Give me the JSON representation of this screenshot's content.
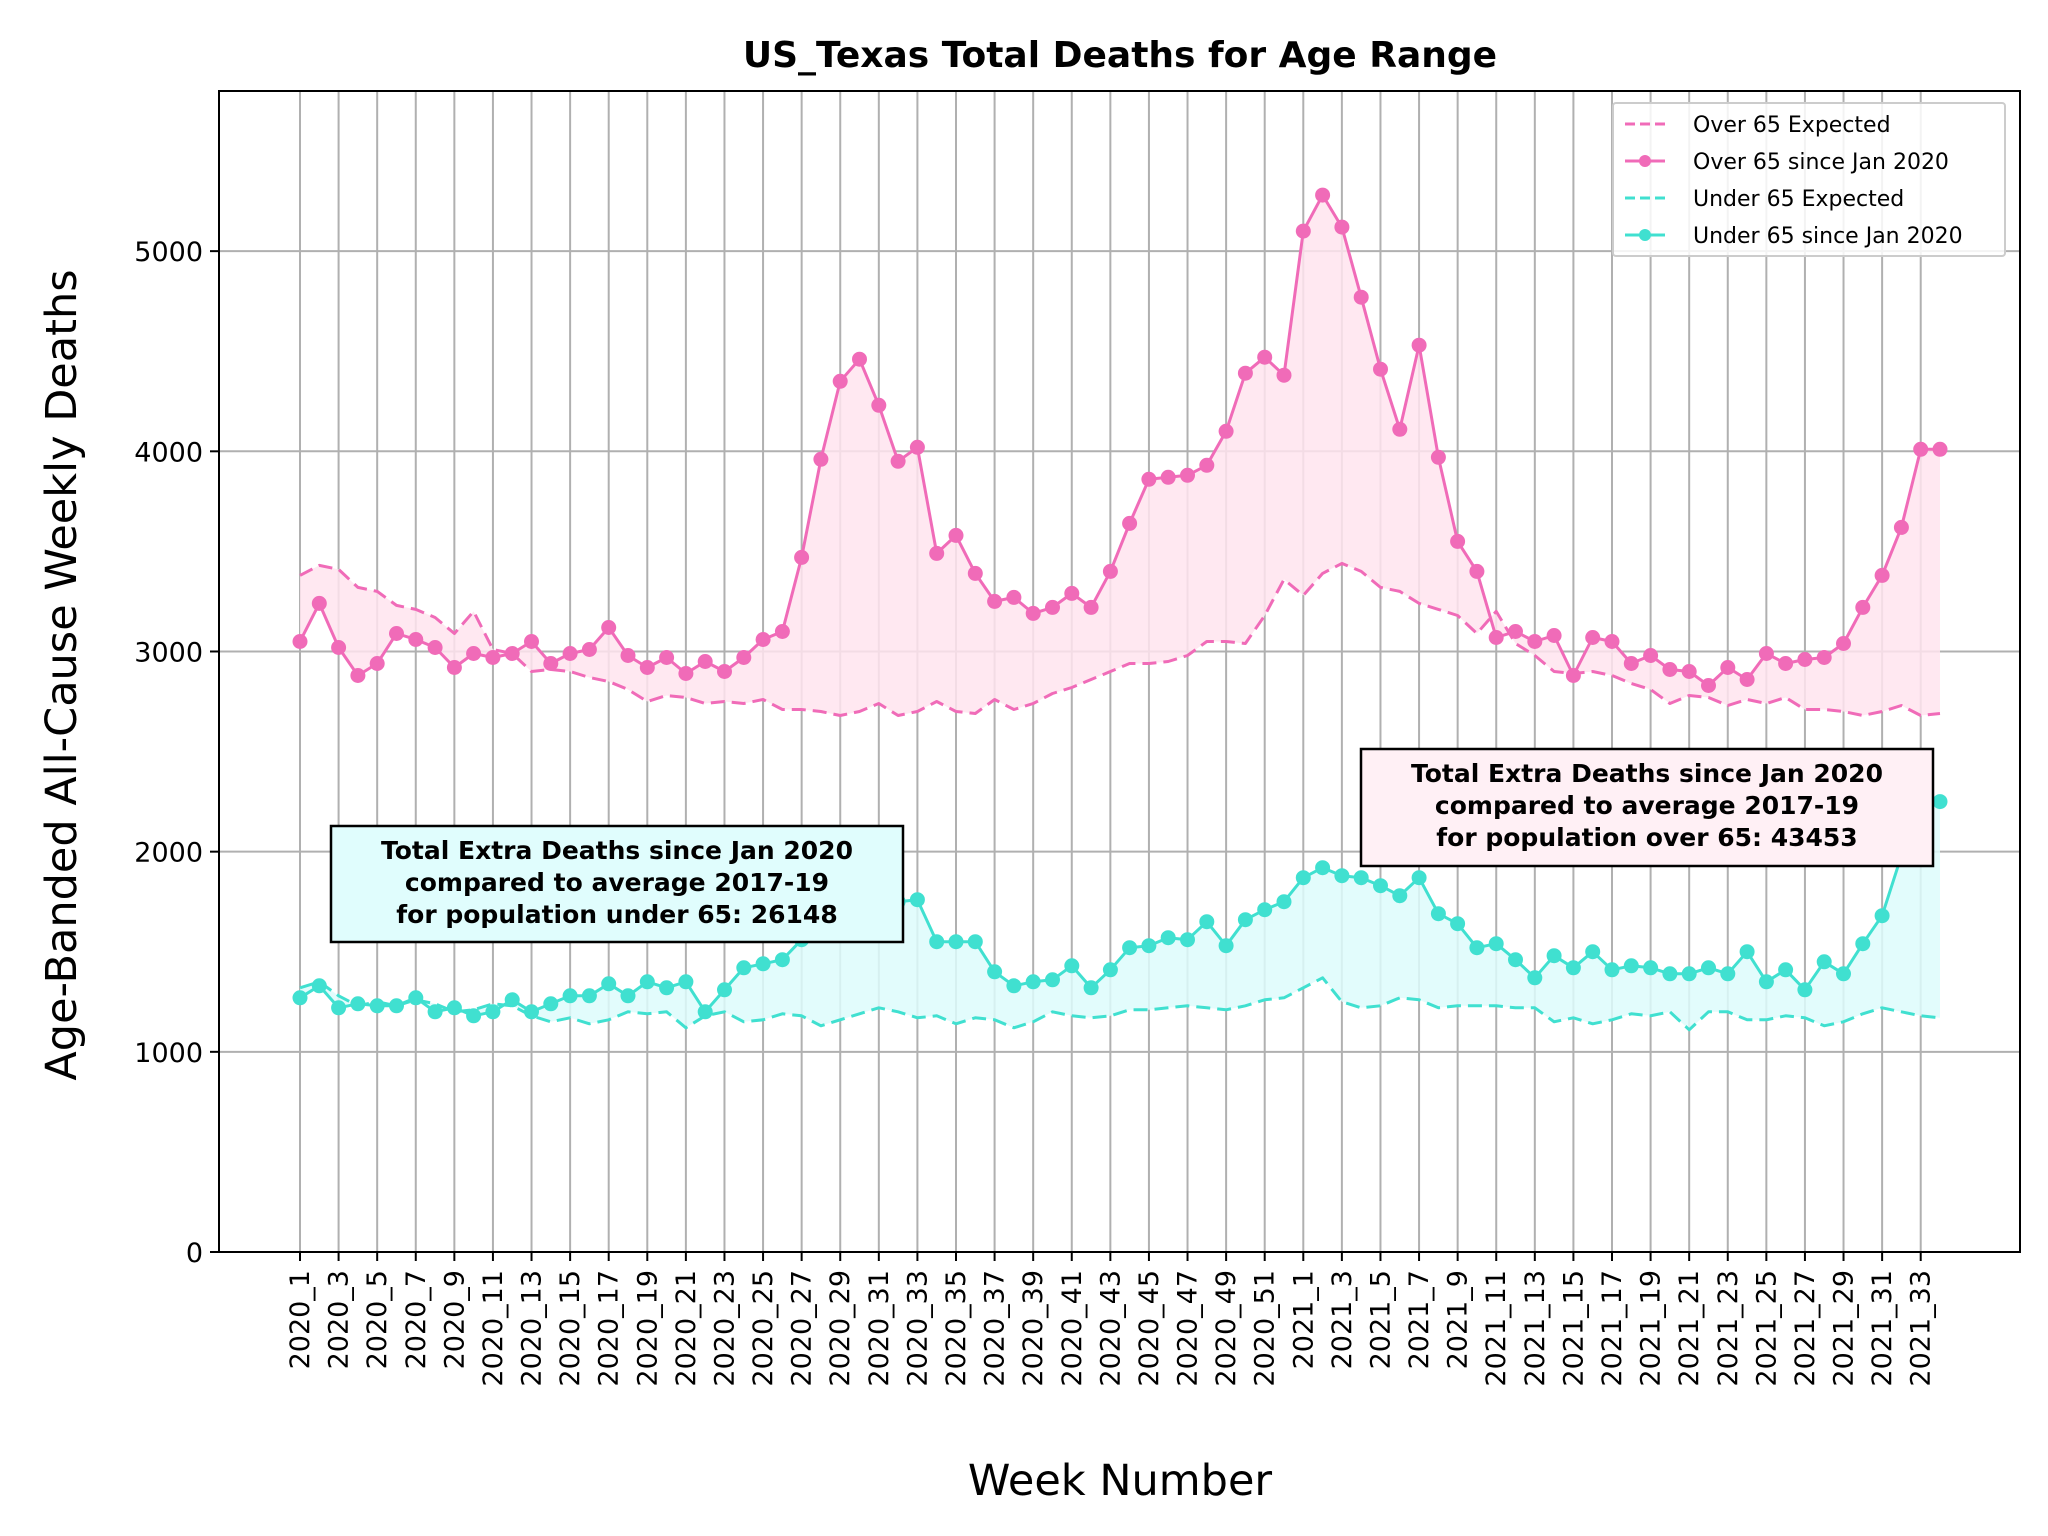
{
  "chart_data": {
    "type": "line",
    "title": "US_Texas Total Deaths for Age Range",
    "xlabel": "Week Number",
    "ylabel": "Age-Banded All-Cause Weekly Deaths",
    "ylim": [
      0,
      5800
    ],
    "yticks": [
      0,
      1000,
      2000,
      3000,
      4000,
      5000
    ],
    "grid": true,
    "legend_position": "top-right",
    "categories": [
      "2020_1",
      "2020_2",
      "2020_3",
      "2020_4",
      "2020_5",
      "2020_6",
      "2020_7",
      "2020_8",
      "2020_9",
      "2020_10",
      "2020_11",
      "2020_12",
      "2020_13",
      "2020_14",
      "2020_15",
      "2020_16",
      "2020_17",
      "2020_18",
      "2020_19",
      "2020_20",
      "2020_21",
      "2020_22",
      "2020_23",
      "2020_24",
      "2020_25",
      "2020_26",
      "2020_27",
      "2020_28",
      "2020_29",
      "2020_30",
      "2020_31",
      "2020_32",
      "2020_33",
      "2020_34",
      "2020_35",
      "2020_36",
      "2020_37",
      "2020_38",
      "2020_39",
      "2020_40",
      "2020_41",
      "2020_42",
      "2020_43",
      "2020_44",
      "2020_45",
      "2020_46",
      "2020_47",
      "2020_48",
      "2020_49",
      "2020_50",
      "2020_51",
      "2020_52",
      "2021_1",
      "2021_2",
      "2021_3",
      "2021_4",
      "2021_5",
      "2021_6",
      "2021_7",
      "2021_8",
      "2021_9",
      "2021_10",
      "2021_11",
      "2021_12",
      "2021_13",
      "2021_14",
      "2021_15",
      "2021_16",
      "2021_17",
      "2021_18",
      "2021_19",
      "2021_20",
      "2021_21",
      "2021_22",
      "2021_23",
      "2021_24",
      "2021_25",
      "2021_26",
      "2021_27",
      "2021_28",
      "2021_29",
      "2021_30",
      "2021_31",
      "2021_32",
      "2021_33",
      "2021_34"
    ],
    "xtick_labels": [
      "2020_1",
      "2020_3",
      "2020_5",
      "2020_7",
      "2020_9",
      "2020_11",
      "2020_13",
      "2020_15",
      "2020_17",
      "2020_19",
      "2020_21",
      "2020_23",
      "2020_25",
      "2020_27",
      "2020_29",
      "2020_31",
      "2020_33",
      "2020_35",
      "2020_37",
      "2020_39",
      "2020_41",
      "2020_43",
      "2020_45",
      "2020_47",
      "2020_49",
      "2020_51",
      "2021_1",
      "2021_3",
      "2021_5",
      "2021_7",
      "2021_9",
      "2021_11",
      "2021_13",
      "2021_15",
      "2021_17",
      "2021_19",
      "2021_21",
      "2021_23",
      "2021_25",
      "2021_27",
      "2021_29",
      "2021_31",
      "2021_33"
    ],
    "series": [
      {
        "name": "Over 65 Expected",
        "style": "dashed",
        "color": "#f06bb8",
        "values": [
          3380,
          3430,
          3410,
          3320,
          3300,
          3230,
          3210,
          3170,
          3090,
          3200,
          3010,
          2990,
          2900,
          2910,
          2900,
          2870,
          2850,
          2810,
          2750,
          2780,
          2770,
          2740,
          2750,
          2740,
          2760,
          2710,
          2710,
          2700,
          2680,
          2700,
          2740,
          2680,
          2700,
          2750,
          2700,
          2690,
          2760,
          2710,
          2740,
          2790,
          2820,
          2860,
          2900,
          2940,
          2940,
          2950,
          2980,
          3050,
          3050,
          3040,
          3180,
          3360,
          3280,
          3390,
          3440,
          3400,
          3320,
          3300,
          3240,
          3210,
          3180,
          3090,
          3200,
          3040,
          2980,
          2900,
          2890,
          2900,
          2880,
          2840,
          2810,
          2740,
          2780,
          2770,
          2730,
          2760,
          2740,
          2770,
          2710,
          2710,
          2700,
          2680,
          2700,
          2730,
          2680,
          2690
        ]
      },
      {
        "name": "Over 65 since Jan 2020",
        "style": "solid-marker",
        "color": "#f06bb8",
        "values": [
          3050,
          3240,
          3020,
          2880,
          2940,
          3090,
          3060,
          3020,
          2920,
          2990,
          2970,
          2990,
          3050,
          2940,
          2990,
          3010,
          3120,
          2980,
          2920,
          2970,
          2890,
          2950,
          2900,
          2970,
          3060,
          3100,
          3470,
          3960,
          4350,
          4460,
          4230,
          3950,
          4020,
          3490,
          3580,
          3390,
          3250,
          3270,
          3190,
          3220,
          3290,
          3220,
          3400,
          3640,
          3860,
          3870,
          3880,
          3930,
          4100,
          4390,
          4470,
          4380,
          5100,
          5280,
          5120,
          4770,
          4410,
          4110,
          4530,
          3970,
          3550,
          3400,
          3070,
          3100,
          3050,
          3080,
          2880,
          3070,
          3050,
          2940,
          2980,
          2910,
          2900,
          2830,
          2920,
          2860,
          2990,
          2940,
          2960,
          2970,
          3040,
          3220,
          3380,
          3620,
          4010,
          4010
        ]
      },
      {
        "name": "Under 65 Expected",
        "style": "dashed",
        "color": "#40e0d0",
        "values": [
          1320,
          1350,
          1280,
          1230,
          1250,
          1230,
          1260,
          1240,
          1200,
          1210,
          1240,
          1230,
          1180,
          1150,
          1170,
          1140,
          1160,
          1200,
          1190,
          1200,
          1120,
          1180,
          1200,
          1150,
          1160,
          1190,
          1180,
          1130,
          1160,
          1190,
          1220,
          1200,
          1170,
          1180,
          1140,
          1170,
          1160,
          1120,
          1150,
          1200,
          1180,
          1170,
          1180,
          1210,
          1210,
          1220,
          1230,
          1220,
          1210,
          1230,
          1260,
          1270,
          1320,
          1370,
          1250,
          1220,
          1230,
          1270,
          1260,
          1220,
          1230,
          1230,
          1230,
          1220,
          1220,
          1150,
          1170,
          1140,
          1160,
          1190,
          1180,
          1200,
          1110,
          1200,
          1200,
          1160,
          1160,
          1180,
          1170,
          1130,
          1150,
          1190,
          1220,
          1200,
          1180,
          1170
        ]
      },
      {
        "name": "Under 65 since Jan 2020",
        "style": "solid-marker",
        "color": "#40e0d0",
        "values": [
          1270,
          1330,
          1220,
          1240,
          1230,
          1230,
          1270,
          1200,
          1220,
          1180,
          1200,
          1260,
          1200,
          1240,
          1280,
          1280,
          1340,
          1280,
          1350,
          1320,
          1350,
          1200,
          1310,
          1420,
          1440,
          1460,
          1560,
          1610,
          1650,
          1690,
          1740,
          1750,
          1760,
          1550,
          1550,
          1550,
          1400,
          1330,
          1350,
          1360,
          1430,
          1320,
          1410,
          1520,
          1530,
          1570,
          1560,
          1650,
          1530,
          1660,
          1710,
          1750,
          1870,
          1920,
          1880,
          1870,
          1830,
          1780,
          1870,
          1690,
          1640,
          1520,
          1540,
          1460,
          1370,
          1480,
          1420,
          1500,
          1410,
          1430,
          1420,
          1390,
          1390,
          1420,
          1390,
          1500,
          1350,
          1410,
          1310,
          1450,
          1390,
          1540,
          1680,
          1980,
          2250,
          2250
        ]
      }
    ],
    "annotations": [
      {
        "lines": [
          "Total Extra Deaths since Jan 2020",
          "compared to average 2017-19",
          "for population under 65: 26148"
        ],
        "background": "#e0fdfd"
      },
      {
        "lines": [
          "Total Extra Deaths since Jan 2020",
          "compared to average 2017-19",
          "for population over 65: 43453"
        ],
        "background": "#fff0f5"
      }
    ]
  }
}
